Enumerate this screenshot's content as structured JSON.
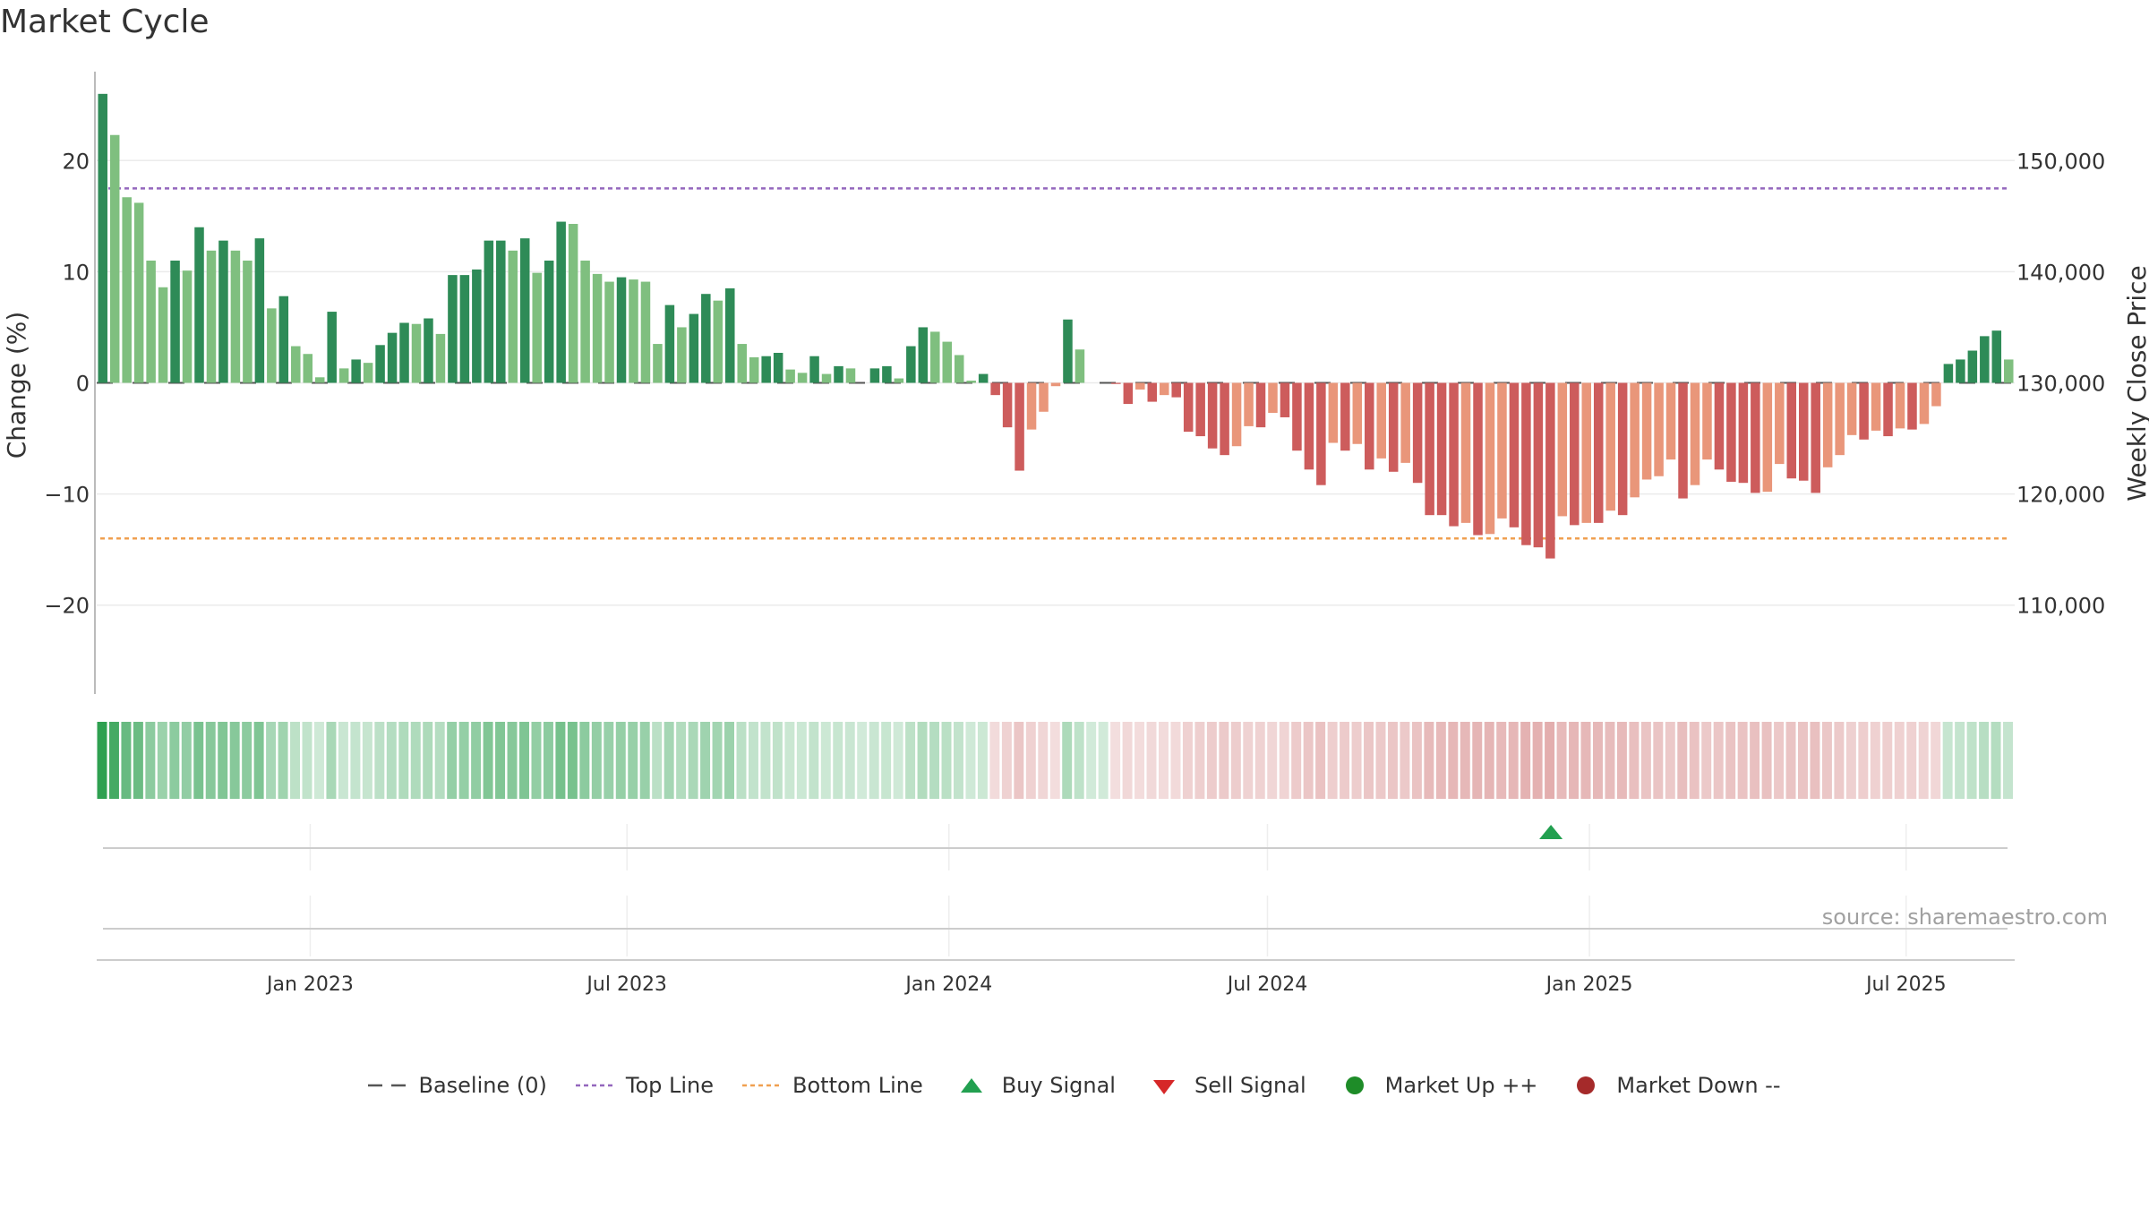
{
  "title": "Market Cycle",
  "source": "source: sharemaestro.com",
  "colors": {
    "up_strong": "#2e8b57",
    "up_light": "#7fbf7f",
    "down_strong": "#cd5c5c",
    "down_light": "#e9967a",
    "top_line": "#9467bd",
    "bottom_line": "#f0a050",
    "baseline": "#555555",
    "buy": "#22a050",
    "sell": "#d62728",
    "market_up": "#1e8c28",
    "market_down": "#a52a2a"
  },
  "chart_data": {
    "type": "bar",
    "ylabel": "Change (%)",
    "y2label": "Weekly Close Price",
    "ylim": [
      -28,
      28
    ],
    "yticks": [
      20,
      10,
      0,
      -10,
      -20
    ],
    "ytick_labels": [
      "20",
      "10",
      "0",
      "−10",
      "−20"
    ],
    "y2ticks": [
      "150,000",
      "140,000",
      "130,000",
      "120,000",
      "110,000"
    ],
    "x_start": "2022-09-01",
    "x_end": "2025-09-01",
    "xticks": [
      "2023-01-01",
      "2023-07-01",
      "2024-01-01",
      "2024-07-01",
      "2025-01-01",
      "2025-07-01"
    ],
    "xtick_labels": [
      "Jan 2023",
      "Jul 2023",
      "Jan 2024",
      "Jul 2024",
      "Jan 2025",
      "Jul 2025"
    ],
    "first_week": "2022-09-05",
    "top_line": 17.5,
    "bottom_line": -14,
    "values": [
      26,
      22.3,
      16.7,
      16.2,
      11,
      8.6,
      11,
      10.1,
      14,
      11.9,
      12.8,
      11.9,
      11,
      13,
      6.7,
      7.8,
      3.3,
      2.6,
      0.5,
      6.4,
      1.3,
      2.1,
      1.8,
      3.4,
      4.5,
      5.4,
      5.3,
      5.8,
      4.4,
      9.7,
      9.7,
      10.2,
      12.8,
      12.8,
      11.9,
      13,
      9.9,
      11,
      14.5,
      14.3,
      11,
      9.8,
      9.1,
      9.5,
      9.3,
      9.1,
      3.5,
      7,
      5,
      6.2,
      8,
      7.4,
      8.5,
      3.5,
      2.3,
      2.4,
      2.7,
      1.2,
      0.9,
      2.4,
      0.8,
      1.5,
      1.3,
      0,
      1.3,
      1.5,
      0.4,
      3.3,
      5,
      4.6,
      3.7,
      2.5,
      0.2,
      0.8,
      -1.1,
      -4,
      -7.9,
      -4.2,
      -2.6,
      -0.3,
      5.7,
      3,
      0,
      0,
      -0.1,
      -1.9,
      -0.6,
      -1.7,
      -1.1,
      -1.3,
      -4.4,
      -4.8,
      -5.9,
      -6.5,
      -5.7,
      -3.9,
      -4,
      -2.7,
      -3.1,
      -6.1,
      -7.8,
      -9.2,
      -5.4,
      -6.1,
      -5.5,
      -7.8,
      -6.8,
      -8,
      -7.2,
      -9,
      -11.9,
      -11.9,
      -12.9,
      -12.6,
      -13.7,
      -13.6,
      -12.2,
      -13,
      -14.6,
      -14.8,
      -15.8,
      -12,
      -12.8,
      -12.6,
      -12.6,
      -11.5,
      -11.9,
      -10.3,
      -8.7,
      -8.4,
      -6.9,
      -10.4,
      -9.2,
      -6.9,
      -7.8,
      -8.9,
      -9,
      -9.9,
      -9.8,
      -7.3,
      -8.6,
      -8.8,
      -9.9,
      -7.6,
      -6.5,
      -4.7,
      -5.1,
      -4.3,
      -4.8,
      -4.1,
      -4.2,
      -3.7,
      -2.1,
      1.7,
      2.1,
      2.9,
      4.2,
      4.7,
      2.1
    ],
    "heatmap_strip": "weekly change intensity",
    "signals": [
      {
        "type": "buy",
        "date": "2024-12-10"
      }
    ],
    "legend": [
      {
        "key": "baseline",
        "label": "Baseline (0)"
      },
      {
        "key": "top",
        "label": "Top Line"
      },
      {
        "key": "bottom",
        "label": "Bottom Line"
      },
      {
        "key": "buy",
        "label": "Buy Signal"
      },
      {
        "key": "sell",
        "label": "Sell Signal"
      },
      {
        "key": "mup",
        "label": "Market Up ++"
      },
      {
        "key": "mdown",
        "label": "Market Down --"
      }
    ]
  }
}
